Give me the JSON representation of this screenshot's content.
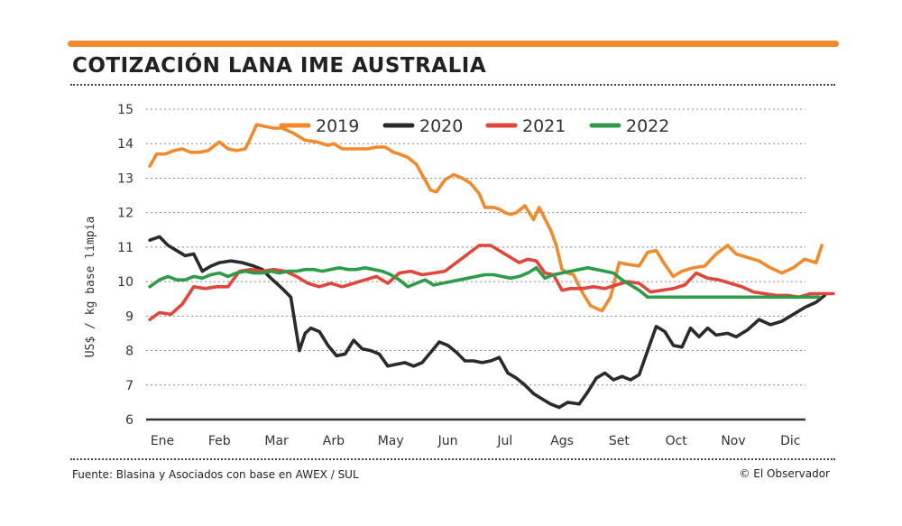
{
  "header": {
    "title": "COTIZACIÓN LANA IME AUSTRALIA"
  },
  "footer": {
    "source": "Fuente: Blasina y Asociados con base en AWEX / SUL",
    "copyright": "© El Observador"
  },
  "colors": {
    "accent": "#ef8a2d",
    "s2019": "#ef8a2d",
    "s2020": "#2a2a2a",
    "s2021": "#e0463a",
    "s2022": "#2e9a4a"
  },
  "chart_data": {
    "type": "line",
    "title": "COTIZACIÓN LANA IME AUSTRALIA",
    "xlabel": "",
    "ylabel": "US$ / kg base limpia",
    "ylim": [
      6,
      15
    ],
    "yticks": [
      6,
      7,
      8,
      9,
      10,
      11,
      12,
      13,
      14,
      15
    ],
    "xlim": [
      0,
      11.6
    ],
    "categories": [
      "Ene",
      "Feb",
      "Mar",
      "Arb",
      "May",
      "Jun",
      "Jul",
      "Ags",
      "Set",
      "Oct",
      "Nov",
      "Dic"
    ],
    "grid": true,
    "legend": "top",
    "series": [
      {
        "name": "2019",
        "color": "#ef8a2d",
        "x": [
          -0.22,
          -0.1,
          0.05,
          0.2,
          0.35,
          0.5,
          0.65,
          0.8,
          1.0,
          1.15,
          1.3,
          1.45,
          1.5,
          1.65,
          1.8,
          1.95,
          2.1,
          2.3,
          2.5,
          2.7,
          2.9,
          3.0,
          3.15,
          3.3,
          3.45,
          3.6,
          3.75,
          3.9,
          4.05,
          4.15,
          4.3,
          4.45,
          4.55,
          4.7,
          4.8,
          4.95,
          5.1,
          5.25,
          5.4,
          5.55,
          5.65,
          5.8,
          5.9,
          6.0,
          6.1,
          6.2,
          6.35,
          6.5,
          6.6,
          6.8,
          6.9,
          7.0,
          7.1,
          7.2,
          7.35,
          7.5,
          7.7,
          7.85,
          8.0,
          8.15,
          8.35,
          8.5,
          8.65,
          8.8,
          8.95,
          9.1,
          9.3,
          9.5,
          9.7,
          9.9,
          10.05,
          10.25,
          10.45,
          10.65,
          10.85,
          11.05,
          11.25,
          11.45,
          11.55
        ],
        "y": [
          13.35,
          13.7,
          13.7,
          13.8,
          13.85,
          13.75,
          13.75,
          13.8,
          14.05,
          13.85,
          13.8,
          13.85,
          14.0,
          14.55,
          14.5,
          14.45,
          14.45,
          14.3,
          14.1,
          14.05,
          13.95,
          14.0,
          13.85,
          13.85,
          13.85,
          13.85,
          13.9,
          13.9,
          13.75,
          13.7,
          13.6,
          13.4,
          13.1,
          12.65,
          12.6,
          12.95,
          13.1,
          13.0,
          12.85,
          12.55,
          12.15,
          12.15,
          12.1,
          12.0,
          11.95,
          12.0,
          12.2,
          11.8,
          12.15,
          11.5,
          11.05,
          10.35,
          10.25,
          10.2,
          9.7,
          9.3,
          9.15,
          9.55,
          10.55,
          10.5,
          10.45,
          10.85,
          10.9,
          10.5,
          10.15,
          10.3,
          10.4,
          10.45,
          10.8,
          11.05,
          10.8,
          10.7,
          10.6,
          10.4,
          10.25,
          10.4,
          10.65,
          10.55,
          11.05
        ]
      },
      {
        "name": "2020",
        "color": "#2a2a2a",
        "x": [
          -0.22,
          -0.05,
          0.1,
          0.25,
          0.4,
          0.55,
          0.7,
          0.85,
          1.0,
          1.2,
          1.4,
          1.6,
          1.75,
          1.9,
          2.0,
          2.1,
          2.25,
          2.4,
          2.5,
          2.6,
          2.75,
          2.9,
          3.05,
          3.2,
          3.35,
          3.5,
          3.65,
          3.8,
          3.95,
          4.1,
          4.25,
          4.4,
          4.55,
          4.7,
          4.85,
          5.0,
          5.15,
          5.3,
          5.45,
          5.6,
          5.75,
          5.9,
          6.05,
          6.2,
          6.35,
          6.5,
          6.65,
          6.8,
          6.95,
          7.1,
          7.3,
          7.45,
          7.6,
          7.75,
          7.9,
          8.05,
          8.2,
          8.35,
          8.5,
          8.65,
          8.8,
          8.95,
          9.1,
          9.25,
          9.4,
          9.55,
          9.7,
          9.9,
          10.05,
          10.25,
          10.45,
          10.65,
          10.85,
          11.05,
          11.25,
          11.45,
          11.6
        ],
        "y": [
          11.2,
          11.3,
          11.05,
          10.9,
          10.75,
          10.8,
          10.3,
          10.45,
          10.55,
          10.6,
          10.55,
          10.45,
          10.35,
          10.1,
          9.95,
          9.8,
          9.55,
          8.0,
          8.5,
          8.65,
          8.55,
          8.15,
          7.85,
          7.9,
          8.3,
          8.05,
          8.0,
          7.9,
          7.55,
          7.6,
          7.65,
          7.55,
          7.65,
          7.95,
          8.25,
          8.15,
          7.95,
          7.7,
          7.7,
          7.65,
          7.7,
          7.8,
          7.35,
          7.2,
          7.0,
          6.75,
          6.6,
          6.45,
          6.35,
          6.5,
          6.45,
          6.8,
          7.2,
          7.35,
          7.15,
          7.25,
          7.15,
          7.3,
          8.0,
          8.7,
          8.55,
          8.15,
          8.1,
          8.65,
          8.4,
          8.65,
          8.45,
          8.5,
          8.4,
          8.6,
          8.9,
          8.75,
          8.85,
          9.05,
          9.25,
          9.4,
          9.6
        ]
      },
      {
        "name": "2021",
        "color": "#e0463a",
        "x": [
          -0.22,
          -0.05,
          0.15,
          0.35,
          0.55,
          0.75,
          0.95,
          1.15,
          1.35,
          1.55,
          1.75,
          1.95,
          2.15,
          2.35,
          2.55,
          2.75,
          2.95,
          3.15,
          3.35,
          3.55,
          3.75,
          3.95,
          4.15,
          4.35,
          4.55,
          4.75,
          4.95,
          5.15,
          5.35,
          5.55,
          5.75,
          5.95,
          6.1,
          6.25,
          6.4,
          6.55,
          6.7,
          6.85,
          7.0,
          7.15,
          7.35,
          7.55,
          7.75,
          7.95,
          8.15,
          8.35,
          8.55,
          8.75,
          8.95,
          9.15,
          9.35,
          9.55,
          9.75,
          9.95,
          10.15,
          10.35,
          10.55,
          10.75,
          10.95,
          11.15,
          11.35,
          11.55,
          11.75
        ],
        "y": [
          8.9,
          9.1,
          9.05,
          9.35,
          9.85,
          9.8,
          9.85,
          9.85,
          10.3,
          10.35,
          10.3,
          10.35,
          10.3,
          10.15,
          9.95,
          9.85,
          9.95,
          9.85,
          9.95,
          10.05,
          10.15,
          9.95,
          10.25,
          10.3,
          10.2,
          10.25,
          10.3,
          10.55,
          10.8,
          11.05,
          11.05,
          10.85,
          10.7,
          10.55,
          10.65,
          10.6,
          10.25,
          10.2,
          9.75,
          9.8,
          9.8,
          9.85,
          9.8,
          9.9,
          10.0,
          9.95,
          9.7,
          9.75,
          9.8,
          9.9,
          10.25,
          10.1,
          10.05,
          9.95,
          9.85,
          9.7,
          9.65,
          9.6,
          9.6,
          9.55,
          9.65,
          9.65,
          9.65
        ]
      },
      {
        "name": "2022",
        "color": "#2e9a4a",
        "x": [
          -0.22,
          -0.05,
          0.1,
          0.25,
          0.4,
          0.55,
          0.7,
          0.85,
          1.0,
          1.15,
          1.3,
          1.45,
          1.6,
          1.75,
          1.9,
          2.05,
          2.2,
          2.35,
          2.5,
          2.65,
          2.8,
          2.95,
          3.1,
          3.25,
          3.4,
          3.55,
          3.7,
          3.85,
          4.0,
          4.15,
          4.3,
          4.45,
          4.6,
          4.75,
          4.9,
          5.05,
          5.2,
          5.35,
          5.5,
          5.65,
          5.8,
          5.95,
          6.1,
          6.25,
          6.4,
          6.55,
          6.7,
          6.85,
          7.0,
          7.15,
          7.3,
          7.45,
          7.6,
          7.75,
          7.9,
          8.05,
          8.2,
          8.35,
          8.5,
          8.65,
          8.8,
          8.95,
          9.1,
          9.25,
          9.4,
          9.55,
          9.7,
          9.85,
          10.0,
          10.15,
          10.3,
          10.45,
          10.6,
          10.75,
          10.9,
          11.05,
          11.2,
          11.35,
          11.5
        ],
        "y": [
          9.85,
          10.05,
          10.15,
          10.05,
          10.05,
          10.15,
          10.1,
          10.2,
          10.25,
          10.15,
          10.25,
          10.3,
          10.25,
          10.25,
          10.3,
          10.25,
          10.3,
          10.3,
          10.35,
          10.35,
          10.3,
          10.35,
          10.4,
          10.35,
          10.35,
          10.4,
          10.35,
          10.3,
          10.2,
          10.05,
          9.85,
          9.95,
          10.05,
          9.9,
          9.95,
          10.0,
          10.05,
          10.1,
          10.15,
          10.2,
          10.2,
          10.15,
          10.1,
          10.15,
          10.25,
          10.4,
          10.1,
          10.2,
          10.25,
          10.3,
          10.35,
          10.4,
          10.35,
          10.3,
          10.25,
          10.05,
          9.9,
          9.75,
          9.55,
          9.55,
          9.55,
          9.55,
          9.55,
          9.55,
          9.55,
          9.55,
          9.55,
          9.55,
          9.55,
          9.55,
          9.55,
          9.55,
          9.55,
          9.55,
          9.55,
          9.55,
          9.55,
          9.55,
          9.55
        ]
      }
    ]
  }
}
